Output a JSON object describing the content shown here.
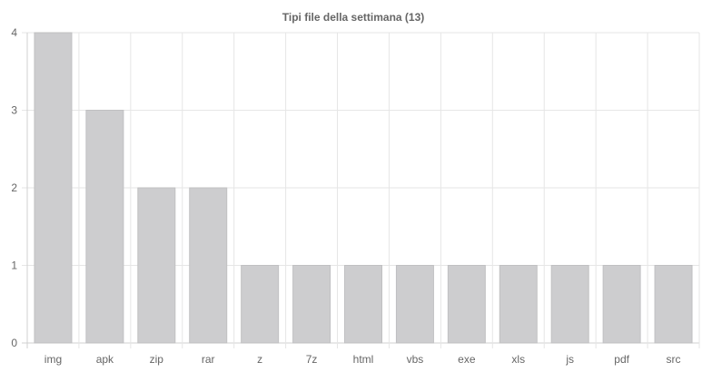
{
  "chart_data": {
    "type": "bar",
    "title": "Tipi file della settimana (13)",
    "categories": [
      "img",
      "apk",
      "zip",
      "rar",
      "z",
      "7z",
      "html",
      "vbs",
      "exe",
      "xls",
      "js",
      "pdf",
      "src"
    ],
    "values": [
      4,
      3,
      2,
      2,
      1,
      1,
      1,
      1,
      1,
      1,
      1,
      1,
      1
    ],
    "ylim": [
      0,
      4
    ],
    "yticks": [
      0,
      1,
      2,
      3,
      4
    ],
    "bar_color": "#cdcdcf",
    "bar_border_color": "#c0c0c2",
    "grid": true,
    "legend": "none"
  }
}
